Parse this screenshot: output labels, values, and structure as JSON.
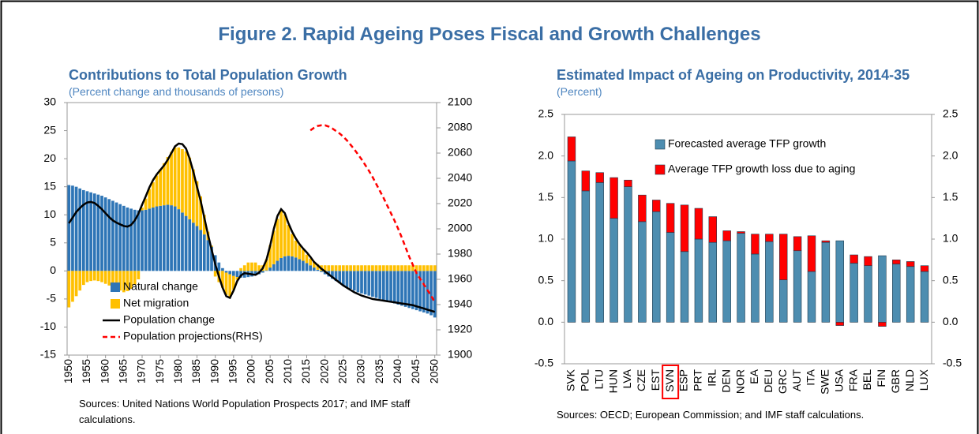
{
  "title": "Figure 2. Rapid Ageing Poses Fiscal and Growth Challenges",
  "chart_data": [
    {
      "type": "bar",
      "title": "Contributions to Total Population Growth",
      "subtitle": "(Percent change and thousands of persons)",
      "source": "Sources: United Nations World Population Prospects 2017; and IMF staff calculations.",
      "x": [
        1950,
        1951,
        1952,
        1953,
        1954,
        1955,
        1956,
        1957,
        1958,
        1959,
        1960,
        1961,
        1962,
        1963,
        1964,
        1965,
        1966,
        1967,
        1968,
        1969,
        1970,
        1971,
        1972,
        1973,
        1974,
        1975,
        1976,
        1977,
        1978,
        1979,
        1980,
        1981,
        1982,
        1983,
        1984,
        1985,
        1986,
        1987,
        1988,
        1989,
        1990,
        1991,
        1992,
        1993,
        1994,
        1995,
        1996,
        1997,
        1998,
        1999,
        2000,
        2001,
        2002,
        2003,
        2004,
        2005,
        2006,
        2007,
        2008,
        2009,
        2010,
        2011,
        2012,
        2013,
        2014,
        2015,
        2016,
        2017,
        2018,
        2019,
        2020,
        2021,
        2022,
        2023,
        2024,
        2025,
        2026,
        2027,
        2028,
        2029,
        2030,
        2031,
        2032,
        2033,
        2034,
        2035,
        2036,
        2037,
        2038,
        2039,
        2040,
        2041,
        2042,
        2043,
        2044,
        2045,
        2046,
        2047,
        2048,
        2049,
        2050
      ],
      "xlim": [
        1949.5,
        2050.5
      ],
      "xticks": [
        1950,
        1955,
        1960,
        1965,
        1970,
        1975,
        1980,
        1985,
        1990,
        1995,
        2000,
        2005,
        2010,
        2015,
        2020,
        2025,
        2030,
        2035,
        2040,
        2045,
        2050
      ],
      "ylim": [
        -15,
        30
      ],
      "yticks": [
        -15,
        -10,
        -5,
        0,
        5,
        10,
        15,
        20,
        25,
        30
      ],
      "y2lim": [
        1900,
        2100
      ],
      "y2ticks": [
        1900,
        1920,
        1940,
        1960,
        1980,
        2000,
        2020,
        2040,
        2060,
        2080,
        2100
      ],
      "legend": "lower left",
      "series": [
        {
          "name": "Natural change",
          "type": "bar",
          "color": "#2e75b6",
          "values": [
            15.3,
            15.2,
            15.0,
            14.7,
            14.4,
            14.2,
            14.0,
            13.8,
            13.6,
            13.4,
            13.1,
            12.8,
            12.5,
            12.2,
            11.9,
            11.6,
            11.3,
            11.1,
            10.9,
            10.8,
            10.8,
            10.9,
            11.1,
            11.3,
            11.5,
            11.6,
            11.7,
            11.8,
            11.7,
            11.5,
            11.0,
            10.4,
            9.8,
            9.2,
            8.6,
            8.0,
            7.3,
            6.5,
            5.5,
            4.3,
            2.8,
            1.5,
            0.5,
            -0.3,
            -0.6,
            -0.9,
            -1.1,
            -1.2,
            -1.2,
            -1.1,
            -1.0,
            -0.8,
            -0.6,
            -0.3,
            0.1,
            0.6,
            1.2,
            1.8,
            2.3,
            2.6,
            2.7,
            2.6,
            2.4,
            2.1,
            1.8,
            1.4,
            1.0,
            0.6,
            0.2,
            -0.2,
            -0.6,
            -1.0,
            -1.4,
            -1.8,
            -2.2,
            -2.6,
            -2.9,
            -3.2,
            -3.5,
            -3.8,
            -4.0,
            -4.2,
            -4.4,
            -4.6,
            -4.8,
            -5.0,
            -5.2,
            -5.4,
            -5.6,
            -5.8,
            -6.0,
            -6.2,
            -6.4,
            -6.6,
            -6.8,
            -7.0,
            -7.2,
            -7.4,
            -7.6,
            -7.9,
            -8.3
          ]
        },
        {
          "name": "Net migration",
          "type": "bar",
          "color": "#ffc000",
          "values": [
            -6.5,
            -5.5,
            -4.5,
            -3.5,
            -2.5,
            -2.0,
            -1.8,
            -1.7,
            -1.8,
            -2.0,
            -2.3,
            -2.6,
            -2.9,
            -3.2,
            -3.5,
            -3.8,
            -3.6,
            -3.2,
            -2.5,
            -1.5,
            0.5,
            2.0,
            3.5,
            4.5,
            5.5,
            6.5,
            7.5,
            8.5,
            9.5,
            10.5,
            11.0,
            11.3,
            11.5,
            11.0,
            9.5,
            8.0,
            6.0,
            3.5,
            1.5,
            0.2,
            -1.0,
            -2.0,
            -3.0,
            -4.0,
            -4.0,
            -2.5,
            -0.5,
            0.5,
            1.0,
            1.5,
            1.5,
            1.5,
            1.0,
            1.0,
            2.0,
            4.0,
            6.0,
            7.5,
            8.5,
            7.5,
            5.5,
            4.0,
            3.0,
            2.5,
            2.0,
            1.5,
            1.2,
            1.0,
            1.0,
            1.0,
            1.0,
            1.0,
            1.0,
            1.0,
            1.0,
            1.0,
            1.0,
            1.0,
            1.0,
            1.0,
            1.0,
            1.0,
            1.0,
            1.0,
            1.0,
            1.0,
            1.0,
            1.0,
            1.0,
            1.0,
            1.0,
            1.0,
            1.0,
            1.0,
            1.0,
            1.0,
            1.0,
            1.0,
            1.0,
            1.0,
            1.0
          ]
        },
        {
          "name": "Population change",
          "type": "line",
          "color": "#000000",
          "values": [
            8.5,
            9.5,
            10.5,
            11.2,
            11.8,
            12.2,
            12.3,
            12.1,
            11.6,
            11.0,
            10.3,
            9.6,
            9.0,
            8.6,
            8.3,
            8.0,
            7.9,
            8.2,
            9.0,
            10.2,
            11.8,
            13.3,
            14.9,
            16.2,
            17.2,
            18.0,
            18.8,
            19.8,
            21.0,
            22.2,
            22.7,
            22.6,
            21.8,
            20.0,
            17.7,
            15.0,
            12.5,
            9.5,
            6.5,
            3.8,
            1.2,
            -1.0,
            -3.0,
            -4.5,
            -4.8,
            -3.5,
            -1.8,
            -0.8,
            -0.4,
            -0.5,
            -0.6,
            -0.7,
            -0.3,
            0.5,
            2.0,
            4.5,
            7.5,
            9.8,
            11.0,
            10.3,
            8.5,
            7.0,
            5.8,
            4.8,
            4.0,
            3.3,
            2.5,
            1.6,
            1.0,
            0.4,
            -0.1,
            -0.6,
            -1.1,
            -1.6,
            -2.1,
            -2.6,
            -3.0,
            -3.4,
            -3.8,
            -4.1,
            -4.4,
            -4.6,
            -4.8,
            -5.0,
            -5.1,
            -5.2,
            -5.3,
            -5.4,
            -5.5,
            -5.6,
            -5.7,
            -5.8,
            -5.9,
            -6.0,
            -6.1,
            -6.3,
            -6.5,
            -6.7,
            -6.9,
            -7.1,
            -7.3
          ]
        },
        {
          "name": "Population projections(RHS)",
          "type": "line",
          "axis": "y2",
          "line_style": "dashed",
          "color": "#ff0000",
          "values": [
            null,
            null,
            null,
            null,
            null,
            null,
            null,
            null,
            null,
            null,
            null,
            null,
            null,
            null,
            null,
            null,
            null,
            null,
            null,
            null,
            null,
            null,
            null,
            null,
            null,
            null,
            null,
            null,
            null,
            null,
            null,
            null,
            null,
            null,
            null,
            null,
            null,
            null,
            null,
            null,
            null,
            null,
            null,
            null,
            null,
            null,
            null,
            null,
            null,
            null,
            null,
            null,
            null,
            null,
            null,
            null,
            null,
            null,
            null,
            null,
            null,
            null,
            null,
            null,
            null,
            null,
            2078,
            2080,
            2081.5,
            2082,
            2082,
            2081,
            2079.5,
            2077.5,
            2075.5,
            2073,
            2070,
            2066.5,
            2063,
            2059,
            2055,
            2050.5,
            2046,
            2041,
            2035.5,
            2030,
            2024.5,
            2018.5,
            2012.5,
            2006.5,
            2000,
            1993,
            1985.5,
            1978,
            1971.5,
            1965,
            1960.5,
            1956,
            1951.5,
            1947,
            1942
          ]
        }
      ]
    },
    {
      "type": "bar",
      "title": "Estimated Impact of Ageing on Productivity, 2014-35",
      "subtitle": "(Percent)",
      "source": "Sources: OECD; European Commission; and IMF staff calculations.",
      "categories": [
        "SVK",
        "POL",
        "LTU",
        "HUN",
        "LVA",
        "CZE",
        "EST",
        "SVN",
        "ESP",
        "PRT",
        "IRL",
        "DEN",
        "NOR",
        "EA",
        "DEU",
        "GRC",
        "AUT",
        "ITA",
        "SWE",
        "USA",
        "FRA",
        "BEL",
        "FIN",
        "GBR",
        "NLD",
        "LUX"
      ],
      "highlight": "SVN",
      "ylim": [
        -0.5,
        2.5
      ],
      "yticks": [
        -0.5,
        {
          "value": 0,
          "label": "0.0"
        },
        0.5,
        {
          "value": 1,
          "label": "1.0"
        },
        1.5,
        {
          "value": 2,
          "label": "2.0"
        },
        2.5
      ],
      "mirror_y_axis": true,
      "legend": "upper left",
      "series": [
        {
          "name": "Forecasted average TFP growth",
          "type": "bar",
          "color": "#4d8db0",
          "values": [
            1.94,
            1.58,
            1.68,
            1.25,
            1.63,
            1.21,
            1.33,
            1.08,
            0.85,
            1.0,
            0.96,
            0.98,
            1.07,
            0.82,
            0.97,
            0.51,
            0.86,
            0.61,
            0.96,
            0.98,
            0.71,
            0.68,
            0.8,
            0.7,
            0.67,
            0.61
          ]
        },
        {
          "name": "Average TFP growth loss due to aging",
          "type": "bar",
          "color": "#ff0000",
          "values": [
            0.29,
            0.24,
            0.12,
            0.49,
            0.08,
            0.32,
            0.14,
            0.35,
            0.56,
            0.37,
            0.31,
            0.12,
            0.02,
            0.24,
            0.09,
            0.55,
            0.17,
            0.43,
            0.02,
            -0.04,
            0.1,
            0.11,
            -0.05,
            0.05,
            0.06,
            0.07
          ]
        }
      ]
    }
  ]
}
